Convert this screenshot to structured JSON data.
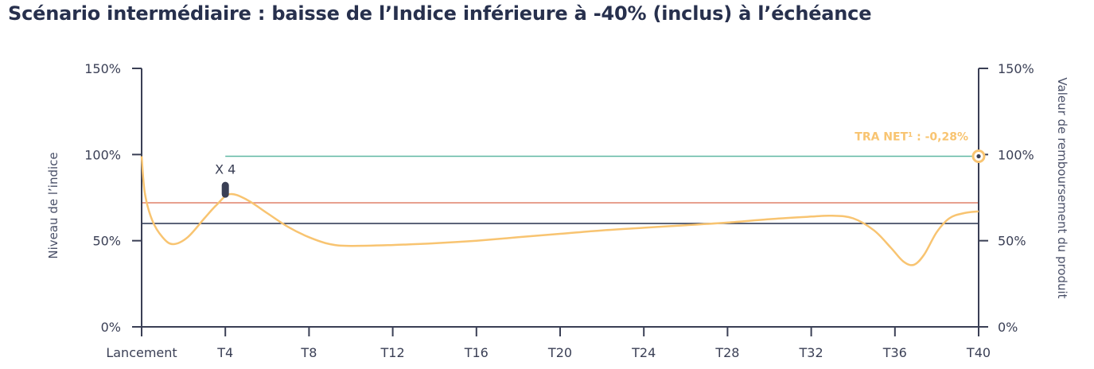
{
  "page": {
    "title": "Scénario intermédiaire : baisse de l’Indice inférieure à -40% (inclus) à l’échéance"
  },
  "chart_data": {
    "type": "line",
    "y_left_label": "Niveau de l’indice",
    "y_right_label": "Valeur de remboursement du produit",
    "ylim": [
      0,
      150
    ],
    "y_ticks": [
      0,
      50,
      100,
      150
    ],
    "y_tick_labels": [
      "0%",
      "50%",
      "100%",
      "150%"
    ],
    "x_ticks": [
      0,
      4,
      8,
      12,
      16,
      20,
      24,
      28,
      32,
      36,
      40
    ],
    "x_tick_labels": [
      "Lancement",
      "T4",
      "T8",
      "T12",
      "T16",
      "T20",
      "T24",
      "T28",
      "T32",
      "T36",
      "T40"
    ],
    "xlim": [
      0,
      40
    ],
    "index_series": {
      "x": [
        0,
        0.15,
        0.5,
        1.0,
        1.5,
        2.2,
        3.0,
        3.6,
        4.2,
        5.0,
        6.0,
        7.0,
        8.0,
        9.0,
        10,
        12,
        14,
        16,
        18,
        20,
        22,
        24,
        26,
        28,
        30,
        32,
        33,
        34,
        35,
        35.8,
        36.4,
        36.9,
        37.4,
        38.0,
        38.6,
        39.3,
        40
      ],
      "values": [
        99,
        78,
        62,
        52,
        48,
        52,
        63,
        71,
        77,
        74,
        66,
        58,
        52,
        48,
        47,
        47.5,
        48.5,
        50,
        52,
        54,
        56,
        57.5,
        59,
        60.5,
        62.5,
        64,
        64.5,
        63,
        56,
        46,
        38,
        36,
        42,
        55,
        63,
        66,
        67
      ]
    },
    "level_lines": [
      {
        "value": 72,
        "color": "#e0806a",
        "x_from": 0,
        "x_to": 40
      },
      {
        "value": 60,
        "color": "#27304d",
        "x_from": 0,
        "x_to": 40
      },
      {
        "value": 99,
        "color": "#5fb7a3",
        "x_from": 4,
        "x_to": 40
      }
    ],
    "annotations": {
      "multiplier": "X 4",
      "multiplier_x": 4,
      "multiplier_value": 80,
      "tra_label": "TRA NET¹ : -0,28%",
      "end_value": 99
    },
    "colors": {
      "index_line": "#f8c471",
      "axis": "#3a3f55",
      "tra": "#f8c471",
      "marker_dark": "#3a3f55"
    }
  }
}
